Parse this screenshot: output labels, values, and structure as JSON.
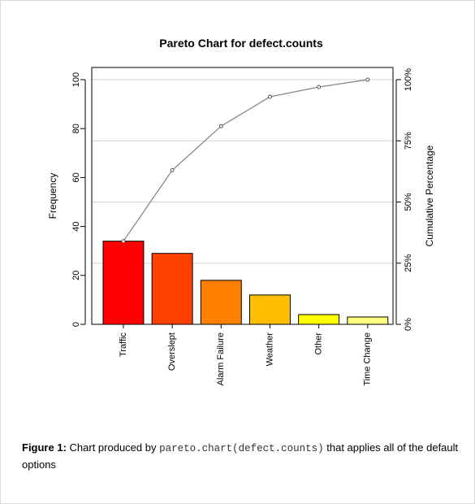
{
  "chart_data": {
    "type": "bar",
    "title": "Pareto Chart for defect.counts",
    "ylabel": "Frequency",
    "y2label": "Cumulative Percentage",
    "ylim": [
      0,
      100
    ],
    "yticks": [
      "0",
      "20",
      "40",
      "60",
      "80",
      "100"
    ],
    "y2ticks": [
      "0%",
      "25%",
      "50%",
      "75%",
      "100%"
    ],
    "categories": [
      "Traffic",
      "Overslept",
      "Alarm Failure",
      "Weather",
      "Other",
      "Time Change"
    ],
    "values": [
      34,
      29,
      18,
      12,
      4,
      3
    ],
    "cumulative_percent": [
      34.0,
      63.0,
      81.0,
      93.0,
      97.0,
      100.0
    ],
    "bar_colors": [
      "#ff0000",
      "#ff4000",
      "#ff8000",
      "#ffbf00",
      "#ffff00",
      "#ffff80"
    ],
    "line_color": "#7f7f7f",
    "grid": true
  },
  "caption": {
    "figure_label": "Figure 1:",
    "text_before": " Chart produced by ",
    "code": "pareto.chart(defect.counts)",
    "text_after": " that applies all of the default options"
  }
}
